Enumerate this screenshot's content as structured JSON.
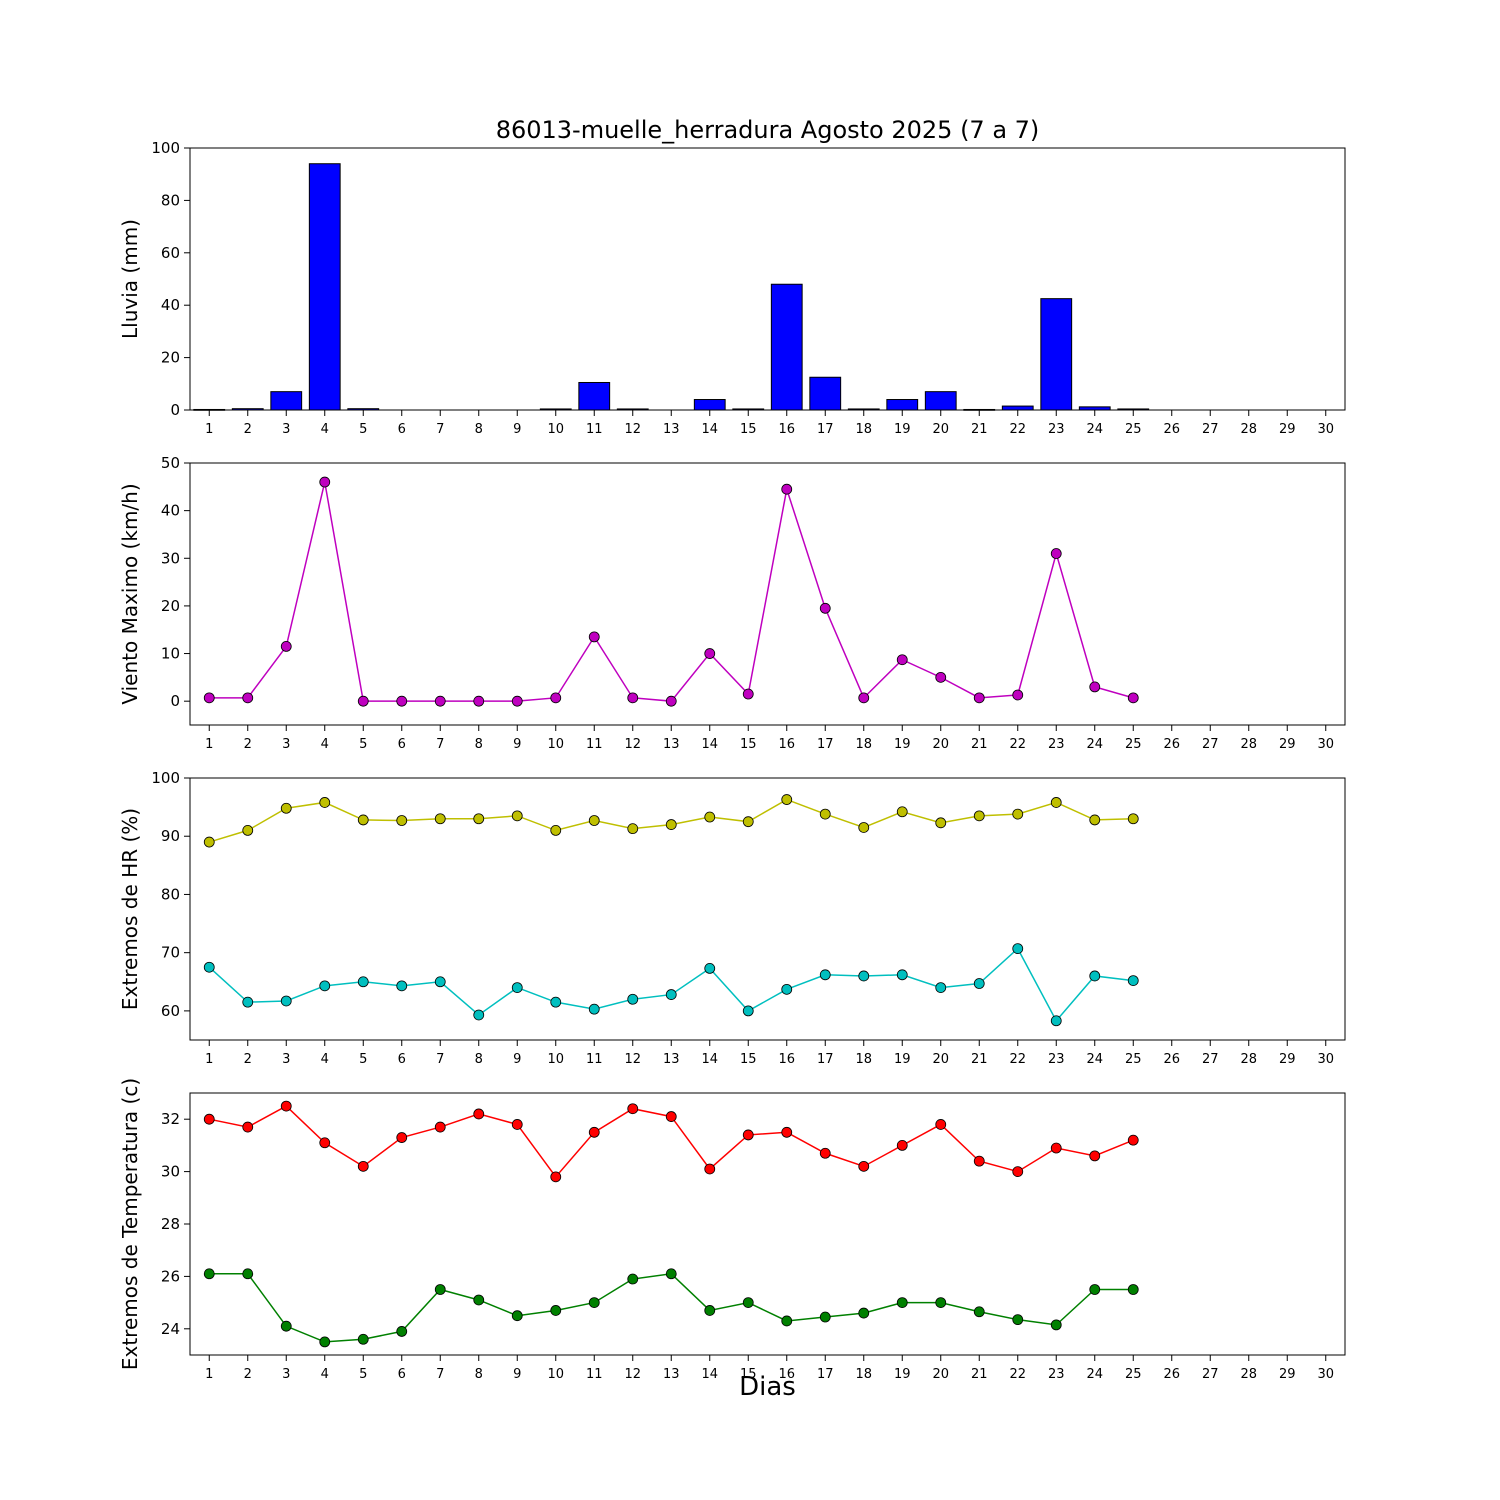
{
  "title": "86013-muelle_herradura Agosto 2025  (7 a 7)",
  "xlabel": "Dias",
  "xlim": [
    0.5,
    30.5
  ],
  "xticks": [
    1,
    2,
    3,
    4,
    5,
    6,
    7,
    8,
    9,
    10,
    11,
    12,
    13,
    14,
    15,
    16,
    17,
    18,
    19,
    20,
    21,
    22,
    23,
    24,
    25,
    26,
    27,
    28,
    29,
    30
  ],
  "days": [
    1,
    2,
    3,
    4,
    5,
    6,
    7,
    8,
    9,
    10,
    11,
    12,
    13,
    14,
    15,
    16,
    17,
    18,
    19,
    20,
    21,
    22,
    23,
    24,
    25
  ],
  "chart_data": [
    {
      "name": "lluvia",
      "type": "bar",
      "ylabel": "Lluvia (mm)",
      "color": "#0000ff",
      "ylim": [
        0,
        100
      ],
      "yticks": [
        0,
        20,
        40,
        60,
        80,
        100
      ],
      "values": [
        0.2,
        0.5,
        7,
        94,
        0.5,
        0,
        0,
        0,
        0,
        0.4,
        10.5,
        0.4,
        0,
        4,
        0.4,
        48,
        12.5,
        0.4,
        4,
        7,
        0.2,
        1.5,
        42.5,
        1.2,
        0.4
      ]
    },
    {
      "name": "viento-maximo",
      "type": "line",
      "ylabel": "Viento Maximo (km/h)",
      "color": "#bf00bf",
      "ylim": [
        -5,
        50
      ],
      "yticks": [
        0,
        10,
        20,
        30,
        40,
        50
      ],
      "values": [
        0.7,
        0.7,
        11.5,
        46,
        0,
        0,
        0,
        0,
        0,
        0.7,
        13.5,
        0.7,
        0,
        10,
        1.5,
        44.5,
        19.5,
        0.7,
        8.7,
        5,
        0.7,
        1.3,
        31,
        3,
        0.7
      ]
    },
    {
      "name": "extremos-hr",
      "type": "line",
      "ylabel": "Extremos de HR (%)",
      "ylim": [
        55,
        100
      ],
      "yticks": [
        60,
        70,
        80,
        90,
        100
      ],
      "series": [
        {
          "name": "hr-maxima",
          "color": "#bfbf00",
          "values": [
            89,
            91,
            94.8,
            95.8,
            92.8,
            92.7,
            93,
            93,
            93.5,
            91,
            92.7,
            91.3,
            92,
            93.3,
            92.5,
            96.3,
            93.8,
            91.5,
            94.2,
            92.3,
            93.5,
            93.8,
            95.8,
            92.8,
            93
          ]
        },
        {
          "name": "hr-minima",
          "color": "#00bfbf",
          "values": [
            67.5,
            61.5,
            61.7,
            64.3,
            65,
            64.3,
            65,
            59.3,
            64,
            61.5,
            60.3,
            62,
            62.8,
            67.3,
            60,
            63.7,
            66.2,
            66,
            66.2,
            64,
            64.7,
            70.7,
            58.3,
            66,
            65.2
          ]
        }
      ]
    },
    {
      "name": "extremos-temperatura",
      "type": "line",
      "ylabel": "Extremos de Temperatura (c)",
      "ylim": [
        23,
        33
      ],
      "yticks": [
        24,
        26,
        28,
        30,
        32
      ],
      "series": [
        {
          "name": "temp-maxima",
          "color": "#ff0000",
          "values": [
            32.0,
            31.7,
            32.5,
            31.1,
            30.2,
            31.3,
            31.7,
            32.2,
            31.8,
            29.8,
            31.5,
            32.4,
            32.1,
            30.1,
            31.4,
            31.5,
            30.7,
            30.2,
            31.0,
            31.8,
            30.4,
            30.0,
            30.9,
            30.6,
            31.2
          ]
        },
        {
          "name": "temp-minima",
          "color": "#008000",
          "values": [
            26.1,
            26.1,
            24.1,
            23.5,
            23.6,
            23.9,
            25.5,
            25.1,
            24.5,
            24.7,
            25.0,
            25.9,
            26.1,
            24.7,
            25.0,
            24.3,
            24.45,
            24.6,
            25.0,
            25.0,
            24.65,
            24.35,
            24.15,
            25.5,
            25.5
          ]
        }
      ]
    }
  ]
}
